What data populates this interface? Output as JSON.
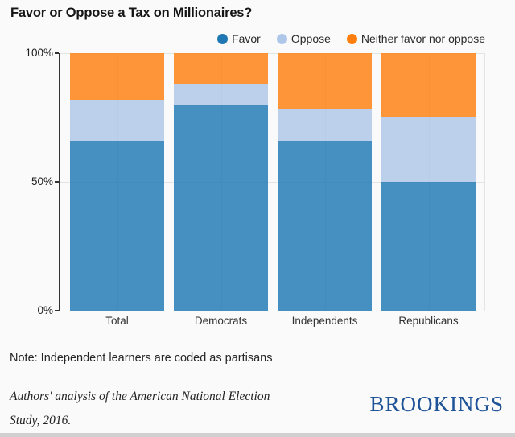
{
  "title": "Favor or Oppose a Tax on Millionaires?",
  "chart_data": {
    "type": "bar",
    "stacked": true,
    "categories": [
      "Total",
      "Democrats",
      "Independents",
      "Republicans"
    ],
    "series": [
      {
        "name": "Favor",
        "color": "#1f77b4",
        "values": [
          66,
          80,
          66,
          50
        ]
      },
      {
        "name": "Oppose",
        "color": "#aec7e8",
        "values": [
          16,
          8,
          12,
          25
        ]
      },
      {
        "name": "Neither favor nor oppose",
        "color": "#ff7f0e",
        "values": [
          18,
          12,
          22,
          25
        ]
      }
    ],
    "ylim": [
      0,
      100
    ],
    "yticks": [
      {
        "value": 100,
        "label": "100%"
      },
      {
        "value": 50,
        "label": "50%"
      },
      {
        "value": 0,
        "label": "0%"
      }
    ],
    "legend_position": "top-right",
    "grid": true
  },
  "note": "Note: Independent learners are coded as partisans",
  "source": {
    "line1": "Authors' analysis of the American National Election",
    "line2": "Study, 2016."
  },
  "brand": "BROOKINGS",
  "colors": {
    "brand_blue": "#1e5397",
    "axis": "#333333",
    "gridline": "#e4e4e4",
    "background": "#fafafa"
  }
}
